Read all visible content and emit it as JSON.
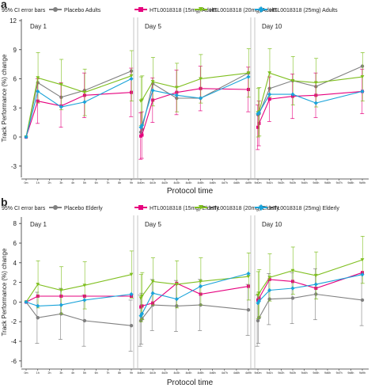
{
  "colors": {
    "placebo": "#808080",
    "htl15": "#e6007e",
    "htl20": "#7fbf1f",
    "htl25": "#1aa3d9",
    "divider": "#b8b8b8",
    "axis": "#333333"
  },
  "chart_data": [
    {
      "type": "line",
      "panel_label": "a",
      "ylabel": "Track Performance (%) change",
      "xlabel": "Protocol time",
      "ylim": [
        -4,
        12
      ],
      "yticks": [
        -3,
        0,
        3,
        6,
        9,
        12
      ],
      "legend_placement": "top",
      "legend": [
        {
          "key": "ci",
          "label": "95% CI error bars"
        },
        {
          "key": "placebo",
          "label": "Placebo Adults"
        },
        {
          "key": "htl15",
          "label": "HTL0018318 (15mg) Adults"
        },
        {
          "key": "htl20",
          "label": "HTL0018318 (20mg) Adults"
        },
        {
          "key": "htl25",
          "label": "HTL0018318 (25mg) Adults"
        }
      ],
      "days": [
        {
          "label": "Day 1",
          "x": [
            0,
            1,
            3,
            5,
            9
          ],
          "tick_labels": [
            "0m",
            "1h",
            "2h",
            "3h",
            "4h",
            "5h",
            "6h",
            "7h",
            "8h",
            "9h"
          ],
          "series": [
            {
              "key": "placebo",
              "values": [
                0,
                5.6,
                4.1,
                4.8,
                6.8
              ],
              "lo": [
                0,
                5.6,
                4.1,
                4.8,
                6.8
              ],
              "hi": [
                0,
                5.6,
                4.1,
                4.8,
                6.8
              ]
            },
            {
              "key": "htl15",
              "values": [
                0,
                3.7,
                3.2,
                4.3,
                4.6
              ],
              "lo": [
                0,
                1.4,
                1.0,
                2.0,
                2.1
              ],
              "hi": [
                0,
                6.0,
                5.6,
                6.6,
                7.1
              ]
            },
            {
              "key": "htl20",
              "values": [
                0,
                6.1,
                5.4,
                4.6,
                6.3
              ],
              "lo": [
                0,
                3.5,
                2.8,
                2.2,
                3.7
              ],
              "hi": [
                0,
                8.7,
                8.0,
                7.0,
                8.9
              ]
            },
            {
              "key": "htl25",
              "values": [
                0,
                4.7,
                3.1,
                3.6,
                6.0
              ],
              "lo": [
                0,
                4.7,
                3.1,
                3.6,
                6.0
              ],
              "hi": [
                0,
                4.7,
                3.1,
                3.6,
                6.0
              ]
            }
          ]
        },
        {
          "label": "Day 5",
          "x": [
            0,
            0.1,
            1,
            3,
            5,
            9
          ],
          "tick_labels": [
            "4d0m",
            "4d1h",
            "4d2h",
            "4d3h",
            "4d4h",
            "4d5h",
            "4d6h",
            "4d7h",
            "4d8h",
            "4d9h"
          ],
          "series": [
            {
              "key": "placebo",
              "values": [
                0.5,
                0.8,
                5.5,
                4.0,
                4.0,
                6.6
              ],
              "lo": [
                0.5,
                0.8,
                5.5,
                4.0,
                4.0,
                6.6
              ],
              "hi": [
                0.5,
                0.8,
                5.5,
                4.0,
                4.0,
                6.6
              ]
            },
            {
              "key": "htl15",
              "values": [
                0.1,
                0.2,
                3.8,
                4.6,
                5.0,
                4.9
              ],
              "lo": [
                -2.3,
                -2.2,
                1.5,
                2.3,
                2.7,
                2.6
              ],
              "hi": [
                2.5,
                2.6,
                6.1,
                6.9,
                7.3,
                7.2
              ]
            },
            {
              "key": "htl20",
              "values": [
                3.7,
                3.8,
                5.7,
                5.1,
                6.0,
                6.6
              ],
              "lo": [
                1.2,
                1.3,
                3.2,
                2.6,
                3.5,
                4.1
              ],
              "hi": [
                6.2,
                6.3,
                8.2,
                7.6,
                8.5,
                9.1
              ]
            },
            {
              "key": "htl25",
              "values": [
                1.0,
                1.2,
                4.8,
                4.3,
                4.0,
                6.2
              ],
              "lo": [
                1.0,
                1.2,
                4.8,
                4.3,
                4.0,
                6.2
              ],
              "hi": [
                1.0,
                1.2,
                4.8,
                4.3,
                4.0,
                6.2
              ]
            }
          ]
        },
        {
          "label": "Day 10",
          "x": [
            0,
            0.1,
            1,
            3,
            5,
            9
          ],
          "tick_labels": [
            "9d0m",
            "9d1h",
            "9d2h",
            "9d3h",
            "9d4h",
            "9d5h",
            "9d6h",
            "9d7h",
            "9d8h",
            "9d9h"
          ],
          "series": [
            {
              "key": "placebo",
              "values": [
                2.3,
                2.4,
                5.0,
                5.8,
                5.2,
                7.3
              ],
              "lo": [
                2.3,
                2.4,
                5.0,
                5.8,
                5.2,
                7.3
              ],
              "hi": [
                2.3,
                2.4,
                5.0,
                5.8,
                5.2,
                7.3
              ]
            },
            {
              "key": "htl15",
              "values": [
                1.0,
                1.4,
                3.9,
                4.2,
                4.3,
                4.7
              ],
              "lo": [
                -1.3,
                -0.9,
                1.6,
                1.9,
                2.0,
                2.4
              ],
              "hi": [
                3.3,
                3.7,
                6.2,
                6.5,
                6.6,
                7.0
              ]
            },
            {
              "key": "htl20",
              "values": [
                2.5,
                2.6,
                6.6,
                5.8,
                5.6,
                6.2
              ],
              "lo": [
                0.0,
                0.1,
                4.1,
                3.3,
                3.1,
                3.7
              ],
              "hi": [
                5.0,
                5.1,
                9.1,
                8.3,
                8.1,
                8.7
              ]
            },
            {
              "key": "htl25",
              "values": [
                2.4,
                2.5,
                4.4,
                4.4,
                3.5,
                4.7
              ],
              "lo": [
                2.4,
                2.5,
                4.4,
                4.4,
                3.5,
                4.7
              ],
              "hi": [
                2.4,
                2.5,
                4.4,
                4.4,
                3.5,
                4.7
              ]
            }
          ]
        }
      ]
    },
    {
      "type": "line",
      "panel_label": "b",
      "ylabel": "Track Performance (%) change",
      "xlabel": "Protocol time",
      "ylim": [
        -6.5,
        8.5
      ],
      "yticks": [
        -6,
        -4,
        -2,
        0,
        2,
        4,
        6,
        8
      ],
      "legend_placement": "top",
      "legend": [
        {
          "key": "ci",
          "label": "95% CI error bars"
        },
        {
          "key": "placebo",
          "label": "Placebo Elderly"
        },
        {
          "key": "htl15",
          "label": "HTL0018318 (15mg) Elderly"
        },
        {
          "key": "htl20",
          "label": "HTL0018318 (20mg) Elderly"
        },
        {
          "key": "htl25",
          "label": "HTL0018318 (25mg) Elderly"
        }
      ],
      "days": [
        {
          "label": "Day 1",
          "x": [
            0,
            1,
            3,
            5,
            9
          ],
          "tick_labels": [
            "0m",
            "1h",
            "2h",
            "3h",
            "4h",
            "5h",
            "6h",
            "7h",
            "8h",
            "9h"
          ],
          "series": [
            {
              "key": "placebo",
              "values": [
                0,
                -1.6,
                -1.2,
                -1.9,
                -2.4
              ],
              "lo": [
                0,
                -4.2,
                -3.8,
                -4.5,
                -5.0
              ],
              "hi": [
                0,
                1.0,
                1.4,
                0.7,
                0.2
              ]
            },
            {
              "key": "htl15",
              "values": [
                0,
                0.6,
                0.6,
                0.6,
                0.6
              ],
              "lo": [
                0,
                0.6,
                0.6,
                0.6,
                0.6
              ],
              "hi": [
                0,
                0.6,
                0.6,
                0.6,
                0.6
              ]
            },
            {
              "key": "htl20",
              "values": [
                0,
                1.8,
                1.2,
                1.7,
                2.8
              ],
              "lo": [
                0,
                -0.6,
                -1.2,
                -0.7,
                0.4
              ],
              "hi": [
                0,
                4.2,
                3.6,
                4.1,
                5.2
              ]
            },
            {
              "key": "htl25",
              "values": [
                0,
                -0.4,
                -0.3,
                0.2,
                0.8
              ],
              "lo": [
                0,
                -0.4,
                -0.3,
                0.2,
                0.8
              ],
              "hi": [
                0,
                -0.4,
                -0.3,
                0.2,
                0.8
              ]
            }
          ]
        },
        {
          "label": "Day 5",
          "x": [
            0,
            0.1,
            1,
            3,
            5,
            9
          ],
          "tick_labels": [
            "4d0m",
            "4d1h",
            "4d2h",
            "4d3h",
            "4d4h",
            "4d5h",
            "4d6h",
            "4d7h",
            "4d8h",
            "4d9h"
          ],
          "series": [
            {
              "key": "placebo",
              "values": [
                -1.9,
                -1.7,
                -0.3,
                -0.4,
                -0.3,
                -0.8
              ],
              "lo": [
                -4.5,
                -4.3,
                -2.9,
                -3.0,
                -2.9,
                -3.4
              ],
              "hi": [
                0.7,
                0.9,
                2.3,
                2.2,
                2.3,
                1.8
              ]
            },
            {
              "key": "htl15",
              "values": [
                -0.5,
                -0.4,
                -0.1,
                1.9,
                0.8,
                1.6
              ],
              "lo": [
                -0.5,
                -0.4,
                -0.1,
                1.9,
                0.8,
                1.6
              ],
              "hi": [
                -0.5,
                -0.4,
                -0.1,
                1.9,
                0.8,
                1.6
              ]
            },
            {
              "key": "htl20",
              "values": [
                0.4,
                0.6,
                2.1,
                1.8,
                2.1,
                2.6
              ],
              "lo": [
                -2.0,
                -1.8,
                -0.3,
                -0.6,
                -0.3,
                0.2
              ],
              "hi": [
                2.8,
                3.0,
                4.5,
                4.2,
                4.5,
                5.0
              ]
            },
            {
              "key": "htl25",
              "values": [
                -1.4,
                -1.2,
                0.9,
                0.3,
                1.6,
                2.9
              ],
              "lo": [
                -1.4,
                -1.2,
                0.9,
                0.3,
                1.6,
                2.9
              ],
              "hi": [
                -1.4,
                -1.2,
                0.9,
                0.3,
                1.6,
                2.9
              ]
            }
          ]
        },
        {
          "label": "Day 10",
          "x": [
            0,
            0.1,
            1,
            3,
            5,
            9
          ],
          "tick_labels": [
            "9d0m",
            "9d1h",
            "9d2h",
            "9d3h",
            "9d4h",
            "9d5h",
            "9d6h",
            "9d7h",
            "9d8h",
            "9d9h"
          ],
          "series": [
            {
              "key": "placebo",
              "values": [
                -1.9,
                -1.6,
                0.3,
                0.4,
                0.8,
                0.2
              ],
              "lo": [
                -4.5,
                -4.2,
                -2.3,
                -2.2,
                -1.8,
                -2.4
              ],
              "hi": [
                0.7,
                1.0,
                2.9,
                3.0,
                3.4,
                2.8
              ]
            },
            {
              "key": "htl15",
              "values": [
                0.2,
                0.4,
                2.3,
                2.1,
                1.4,
                3.0
              ],
              "lo": [
                0.2,
                0.4,
                2.3,
                2.1,
                1.4,
                3.0
              ],
              "hi": [
                0.2,
                0.4,
                2.3,
                2.1,
                1.4,
                3.0
              ]
            },
            {
              "key": "htl20",
              "values": [
                0.7,
                0.9,
                2.5,
                3.2,
                2.7,
                4.3
              ],
              "lo": [
                -1.7,
                -1.5,
                0.1,
                0.8,
                0.3,
                1.9
              ],
              "hi": [
                3.1,
                3.3,
                4.9,
                5.6,
                5.1,
                6.7
              ]
            },
            {
              "key": "htl25",
              "values": [
                -0.1,
                0.1,
                1.2,
                1.4,
                1.8,
                2.8
              ],
              "lo": [
                -0.1,
                0.1,
                1.2,
                1.4,
                1.8,
                2.8
              ],
              "hi": [
                -0.1,
                0.1,
                1.2,
                1.4,
                1.8,
                2.8
              ]
            }
          ]
        }
      ]
    }
  ]
}
